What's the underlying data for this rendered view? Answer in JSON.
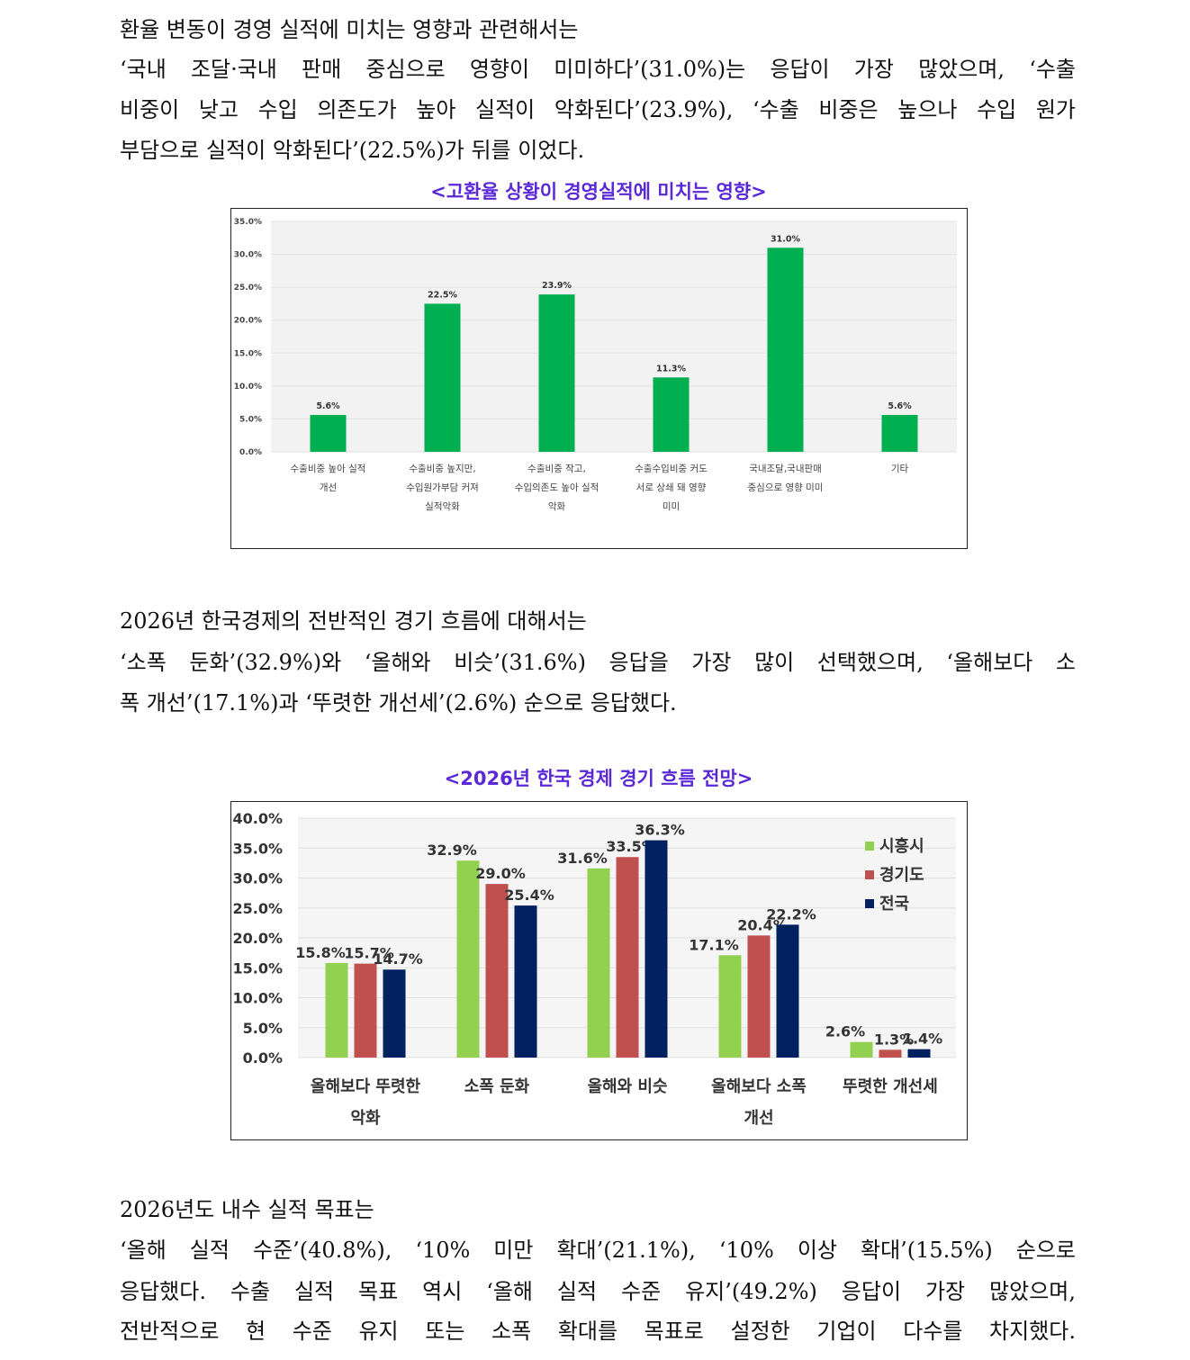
{
  "paragraphs": [
    {
      "lines": [
        "환율 변동이 경영 실적에 미치는 영향과 관련해서는",
        "‘국내 조달·국내 판매 중심으로 영향이 미미하다’(31.0%)는 응답이 가장 많았으며, ‘수출",
        "비중이 낮고 수입 의존도가 높아 실적이 악화된다’(23.9%), ‘수출 비중은 높으나 수입 원가",
        "부담으로 실적이 악화된다’(22.5%)가 뒤를 이었다."
      ]
    },
    {
      "lines": [
        "2026년 한국경제의 전반적인 경기 흐름에 대해서는",
        "‘소폭 둔화’(32.9%)와 ‘올해와 비슷’(31.6%) 응답을 가장 많이 선택했으며, ‘올해보다 소",
        "폭 개선’(17.1%)과 ‘뚜렷한 개선세’(2.6%) 순으로 응답했다."
      ]
    },
    {
      "lines": [
        "2026년도 내수 실적 목표는",
        "‘올해 실적 수준’(40.8%), ‘10% 미만 확대’(21.1%), ‘10% 이상 확대’(15.5%) 순으로",
        "응답했다. 수출 실적 목표 역시 ‘올해 실적 수준 유지’(49.2%) 응답이 가장 많았으며,",
        "전반적으로 현 수준 유지 또는 소폭 확대를 목표로 설정한 기업이 다수를 차지했다."
      ]
    }
  ],
  "captions": [
    "<고환율 상황이 경영실적에 미치는 영향>",
    "<2026년 한국 경제 경기 흐름 전망>"
  ],
  "chart_data": [
    {
      "type": "bar",
      "title": "",
      "categories": [
        [
          "수출비중 높아 실적",
          "개선"
        ],
        [
          "수출비중 높지만,",
          "수입원가부담 커져",
          "실적악화"
        ],
        [
          "수출비중 작고,",
          "수입의존도 높아 실적",
          "악화"
        ],
        [
          "수출수입비중 커도",
          "서로 상쇄 돼 영향",
          "미미"
        ],
        [
          "국내조달,국내판매",
          "중심으로 영향 미미"
        ],
        [
          "기타"
        ]
      ],
      "values": [
        5.6,
        22.5,
        23.9,
        11.3,
        31.0,
        5.6
      ],
      "data_labels": [
        "5.6%",
        "22.5%",
        "23.9%",
        "11.3%",
        "31.0%",
        "5.6%"
      ],
      "ylim": [
        0,
        35
      ],
      "yticks": [
        "0.0%",
        "5.0%",
        "10.0%",
        "15.0%",
        "20.0%",
        "25.0%",
        "30.0%",
        "35.0%"
      ],
      "grid": true,
      "color": "#00b050"
    },
    {
      "type": "bar",
      "title": "",
      "categories": [
        [
          "올해보다 뚜렷한",
          "악화"
        ],
        [
          "소폭 둔화"
        ],
        [
          "올해와 비슷"
        ],
        [
          "올해보다 소폭",
          "개선"
        ],
        [
          "뚜렷한 개선세"
        ]
      ],
      "series": [
        {
          "name": "시흥시",
          "color": "#92d050",
          "values": [
            15.8,
            32.9,
            31.6,
            17.1,
            2.6
          ],
          "labels": [
            "15.8%",
            "32.9%",
            "31.6%",
            "17.1%",
            "2.6%"
          ]
        },
        {
          "name": "경기도",
          "color": "#c0504d",
          "values": [
            15.7,
            29.0,
            33.5,
            20.4,
            1.3
          ],
          "labels": [
            "15.7%",
            "29.0%",
            "33.5%",
            "20.4%",
            "1.3%"
          ]
        },
        {
          "name": "전국",
          "color": "#002060",
          "values": [
            14.7,
            25.4,
            36.3,
            22.2,
            1.4
          ],
          "labels": [
            "14.7%",
            "25.4%",
            "36.3%",
            "22.2%",
            "1.4%"
          ]
        }
      ],
      "ylim": [
        0,
        40
      ],
      "yticks": [
        "0.0%",
        "5.0%",
        "10.0%",
        "15.0%",
        "20.0%",
        "25.0%",
        "30.0%",
        "35.0%",
        "40.0%"
      ],
      "grid": true,
      "legend": "top-right"
    }
  ]
}
